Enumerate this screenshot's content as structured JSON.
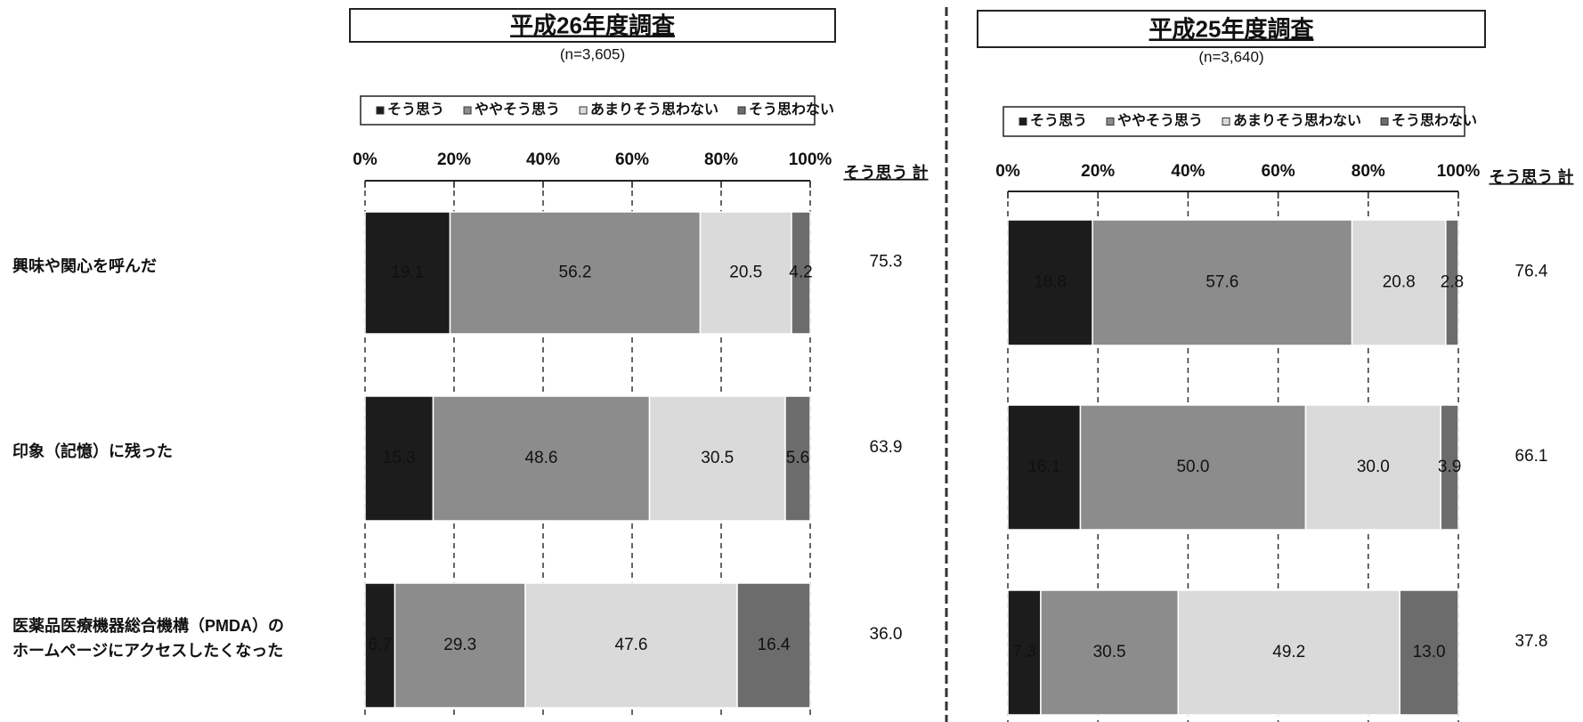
{
  "chart_data": [
    {
      "type": "stacked-bar-horizontal",
      "title": "平成26年度調査",
      "subtitle": "(n=3,605)",
      "categories": [
        "興味や関心を呼んだ",
        "印象（記憶）に残った",
        "医薬品医療機器総合機構（PMDA）の\nホームページにアクセスしたくなった"
      ],
      "xlim": [
        0,
        100
      ],
      "xticks": [
        {
          "value": 0,
          "label": "0%"
        },
        {
          "value": 20,
          "label": "20%"
        },
        {
          "value": 40,
          "label": "40%"
        },
        {
          "value": 60,
          "label": "60%"
        },
        {
          "value": 80,
          "label": "80%"
        },
        {
          "value": 100,
          "label": "100%"
        }
      ],
      "grid": true,
      "series": [
        {
          "name": "そう思う",
          "color": "#1c1c1c",
          "values": [
            19.1,
            15.3,
            6.7
          ],
          "value_labels": [
            "19.1",
            "15.3",
            "6.7"
          ]
        },
        {
          "name": "ややそう思う",
          "color": "#8c8c8c",
          "values": [
            56.2,
            48.6,
            29.3
          ],
          "value_labels": [
            "56.2",
            "48.6",
            "29.3"
          ]
        },
        {
          "name": "あまりそう思わない",
          "color": "#dadada",
          "values": [
            20.5,
            30.5,
            47.6
          ],
          "value_labels": [
            "20.5",
            "30.5",
            "47.6"
          ]
        },
        {
          "name": "そう思わない",
          "color": "#6c6c6c",
          "values": [
            4.2,
            5.6,
            16.4
          ],
          "value_labels": [
            "4.2",
            "5.6",
            "16.4"
          ]
        }
      ],
      "totals": {
        "label": "そう思う 計",
        "values": [
          75.3,
          63.9,
          36.0
        ],
        "value_labels": [
          "75.3",
          "63.9",
          "36.0"
        ]
      }
    },
    {
      "type": "stacked-bar-horizontal",
      "title": "平成25年度調査",
      "subtitle": "(n=3,640)",
      "xlim": [
        0,
        100
      ],
      "xticks": [
        {
          "value": 0,
          "label": "0%"
        },
        {
          "value": 20,
          "label": "20%"
        },
        {
          "value": 40,
          "label": "40%"
        },
        {
          "value": 60,
          "label": "60%"
        },
        {
          "value": 80,
          "label": "80%"
        },
        {
          "value": 100,
          "label": "100%"
        }
      ],
      "grid": true,
      "series": [
        {
          "name": "そう思う",
          "color": "#1c1c1c",
          "values": [
            18.8,
            16.1,
            7.3
          ],
          "value_labels": [
            "18.8",
            "16.1",
            "7.3"
          ]
        },
        {
          "name": "ややそう思う",
          "color": "#8c8c8c",
          "values": [
            57.6,
            50.0,
            30.5
          ],
          "value_labels": [
            "57.6",
            "50.0",
            "30.5"
          ]
        },
        {
          "name": "あまりそう思わない",
          "color": "#dadada",
          "values": [
            20.8,
            30.0,
            49.2
          ],
          "value_labels": [
            "20.8",
            "30.0",
            "49.2"
          ]
        },
        {
          "name": "そう思わない",
          "color": "#6c6c6c",
          "values": [
            2.8,
            3.9,
            13.0
          ],
          "value_labels": [
            "2.8",
            "3.9",
            "13.0"
          ]
        }
      ],
      "totals": {
        "label": "そう思う 計",
        "values": [
          76.4,
          66.1,
          37.8
        ],
        "value_labels": [
          "76.4",
          "66.1",
          "37.8"
        ]
      }
    }
  ]
}
